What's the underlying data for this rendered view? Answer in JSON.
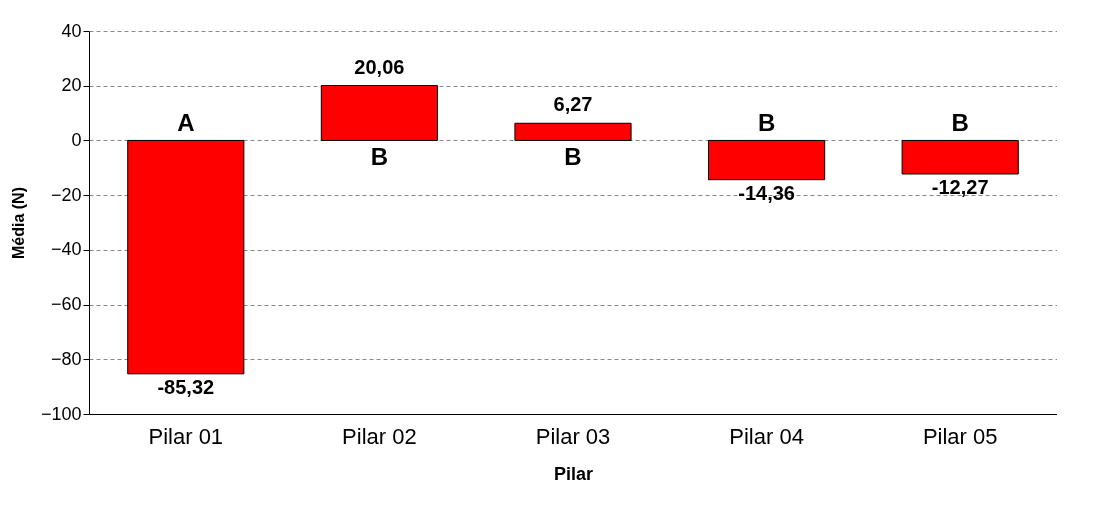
{
  "chart_data": {
    "type": "bar",
    "xlabel": "Pilar",
    "ylabel": "Média (N)",
    "categories": [
      "Pilar 01",
      "Pilar 02",
      "Pilar 03",
      "Pilar 04",
      "Pilar 05"
    ],
    "series": [
      {
        "color": "#ff0000",
        "values": [
          -85.32,
          20.06,
          6.27,
          -14.36,
          -12.27
        ]
      }
    ],
    "value_labels": [
      "-85,32",
      "20,06",
      "6,27",
      "-14,36",
      "-12,27"
    ],
    "ylim": [
      -100,
      40
    ],
    "yticks": [
      -100,
      -80,
      -60,
      -40,
      -20,
      0,
      20,
      40
    ],
    "grid": "y",
    "line_style": "dashed",
    "annotations": [
      "A",
      "B",
      "B",
      "B",
      "B"
    ]
  }
}
